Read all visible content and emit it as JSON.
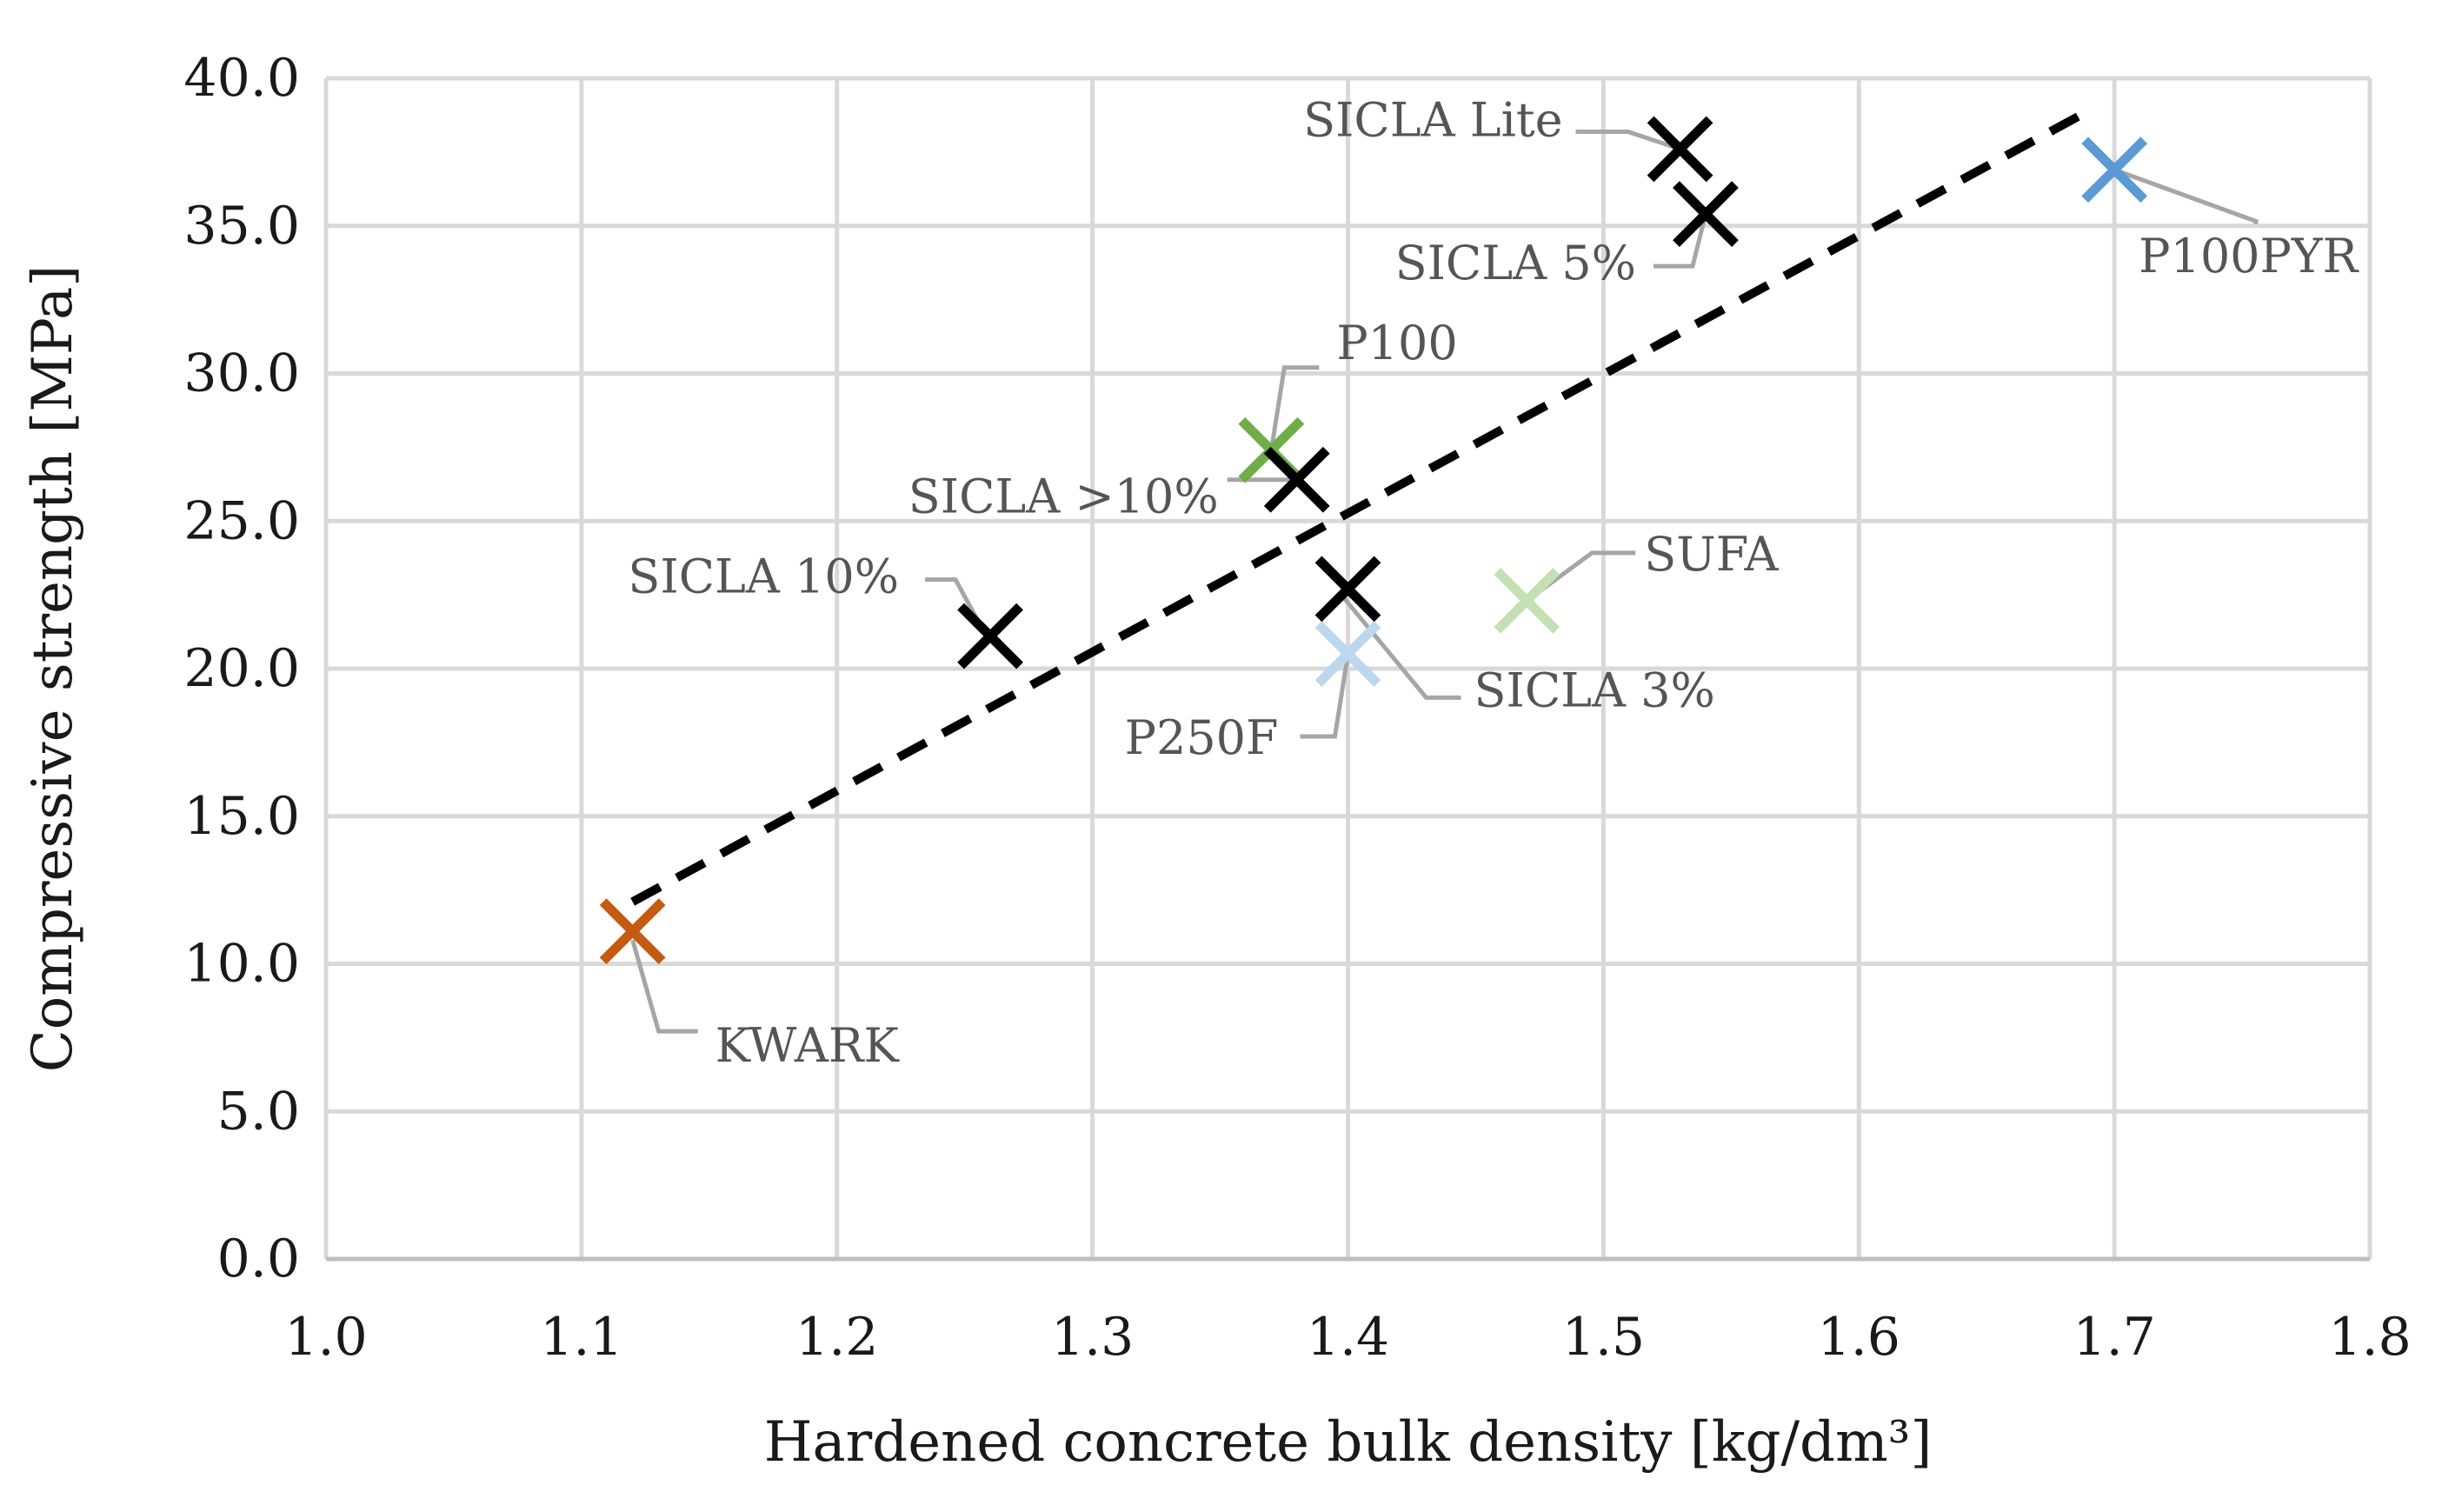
{
  "chart_data": {
    "type": "scatter",
    "title": "",
    "xlabel": "Hardened concrete bulk density [kg/dm³]",
    "ylabel": "Compressive strength [MPa]",
    "xlim": [
      1.0,
      1.8
    ],
    "ylim": [
      0.0,
      40.0
    ],
    "xticks": [
      "1.0",
      "1.1",
      "1.2",
      "1.3",
      "1.4",
      "1.5",
      "1.6",
      "1.7",
      "1.8"
    ],
    "yticks": [
      "0.0",
      "5.0",
      "10.0",
      "15.0",
      "20.0",
      "25.0",
      "30.0",
      "35.0",
      "40.0"
    ],
    "grid": true,
    "points": [
      {
        "name": "KWARK",
        "x": 1.12,
        "y": 11.1,
        "color": "#C55A11"
      },
      {
        "name": "SICLA 10%",
        "x": 1.26,
        "y": 21.1,
        "color": "#000000"
      },
      {
        "name": "P100",
        "x": 1.37,
        "y": 27.4,
        "color": "#70AD47"
      },
      {
        "name": "SICLA >10%",
        "x": 1.38,
        "y": 26.4,
        "color": "#000000"
      },
      {
        "name": "P250F",
        "x": 1.4,
        "y": 20.5,
        "color": "#BDD7EE"
      },
      {
        "name": "SICLA 3%",
        "x": 1.4,
        "y": 22.7,
        "color": "#000000"
      },
      {
        "name": "SUFA",
        "x": 1.47,
        "y": 22.3,
        "color": "#C5E0B4"
      },
      {
        "name": "SICLA Lite",
        "x": 1.53,
        "y": 37.6,
        "color": "#000000"
      },
      {
        "name": "SICLA 5%",
        "x": 1.54,
        "y": 35.4,
        "color": "#000000"
      },
      {
        "name": "P100PYR",
        "x": 1.7,
        "y": 36.9,
        "color": "#5B9BD5"
      }
    ],
    "trendline": {
      "type": "linear",
      "style": "dashed",
      "color": "#000000",
      "x": [
        1.12,
        1.69
      ],
      "y": [
        12.1,
        38.9
      ]
    }
  }
}
